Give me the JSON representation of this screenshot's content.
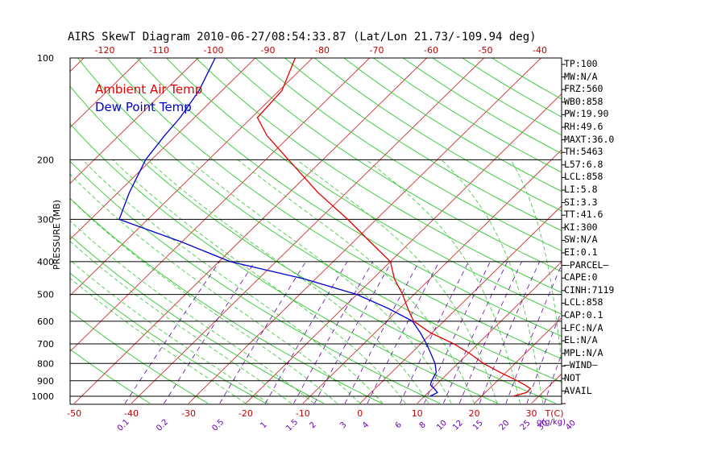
{
  "colors": {
    "temp": "#e00000",
    "dewpoint": "#0000d0",
    "isotherm": "#d03030",
    "dry_adiabat": "#30c830",
    "moist_adiabat": "#30c830",
    "mixing_ratio": "#6a00b0",
    "axis_labels": "#c00000",
    "mixing_labels": "#6a00b0",
    "text": "#000000"
  },
  "chart_data": {
    "type": "line",
    "title": "AIRS SkewT Diagram 2010-06-27/08:54:33.87 (Lat/Lon 21.73/-109.94 deg)",
    "ylabel": "PRESSURE (MB)",
    "xlabel": "T(C)",
    "mixing_ratio_label": "g(g/kg)",
    "pressure_ticks": [
      100,
      200,
      300,
      400,
      500,
      600,
      700,
      800,
      900,
      1000
    ],
    "pressure_tick_labels": [
      "100",
      "200",
      "300",
      "400",
      "500",
      "600",
      "700",
      "800",
      "900",
      "1000"
    ],
    "bottom_temp_ticks": [
      -50,
      -40,
      -30,
      -20,
      -10,
      0,
      10,
      20,
      30
    ],
    "bottom_temp_labels": [
      "-50",
      "-40",
      "-30",
      "-20",
      "-10",
      "0",
      "10",
      "20",
      "30"
    ],
    "top_temp_ticks": [
      -120,
      -110,
      -100,
      -90,
      -80,
      -70,
      -60,
      -50,
      -40
    ],
    "top_temp_labels": [
      "-120",
      "-110",
      "-100",
      "-90",
      "-80",
      "-70",
      "-60",
      "-50",
      "-40"
    ],
    "mixing_ratios": [
      0.1,
      0.2,
      0.5,
      1,
      1.5,
      2,
      3,
      4,
      6,
      8,
      10,
      12,
      15,
      20,
      25,
      30,
      40
    ],
    "mixing_ratio_labels": [
      "0.1",
      "0.2",
      "0.5",
      "1",
      "1.5",
      "2",
      "3",
      "4",
      "6",
      "8",
      "10",
      "12",
      "15",
      "20",
      "25",
      "30",
      "40"
    ],
    "series": [
      {
        "name": "Ambient Air Temp",
        "pressure": [
          1000,
          975,
          950,
          925,
          900,
          850,
          800,
          750,
          700,
          650,
          600,
          550,
          500,
          450,
          400,
          350,
          300,
          250,
          200,
          170,
          150,
          125,
          100
        ],
        "temp_c": [
          25.5,
          27.2,
          27.2,
          25.5,
          23.5,
          19.0,
          14.5,
          10.5,
          5.8,
          -0.2,
          -5.3,
          -8.6,
          -12.0,
          -16.2,
          -20.0,
          -27.0,
          -35.0,
          -45.0,
          -56.0,
          -64.0,
          -69.0,
          -69.5,
          -73.0
        ]
      },
      {
        "name": "Dew Point Temp",
        "pressure": [
          1000,
          975,
          950,
          925,
          900,
          850,
          800,
          750,
          700,
          650,
          600,
          550,
          500,
          450,
          400,
          350,
          300,
          250,
          200,
          170,
          150,
          125,
          100
        ],
        "temp_c": [
          11.0,
          11.6,
          10.4,
          9.0,
          8.5,
          7.8,
          6.0,
          3.6,
          1.0,
          -2.0,
          -5.5,
          -12.0,
          -20.0,
          -32.0,
          -48.0,
          -60.0,
          -75.0,
          -78.0,
          -81.0,
          -82.0,
          -82.5,
          -84.0,
          -87.0
        ]
      }
    ],
    "legend": [
      "Ambient Air Temp",
      "Dew Point Temp"
    ],
    "legend_placement": "top-left",
    "temp_range_at_1000": [
      -52,
      34
    ],
    "pressure_range": [
      100,
      1050
    ]
  },
  "indices": [
    "TP:100",
    "MW:N/A",
    "FRZ:560",
    "WB0:858",
    "PW:19.90",
    "RH:49.6",
    "MAXT:36.0",
    "TH:5463",
    "L57:6.8",
    "LCL:858",
    "LI:5.8",
    "SI:3.3",
    "TT:41.6",
    "KI:300",
    "SW:N/A",
    "EI:0.1",
    "—PARCEL—",
    "CAPE:0",
    "CINH:7119",
    "LCL:858",
    "CAP:0.1",
    "LFC:N/A",
    "EL:N/A",
    "MPL:N/A",
    "—WIND—",
    "NOT",
    "AVAIL"
  ]
}
